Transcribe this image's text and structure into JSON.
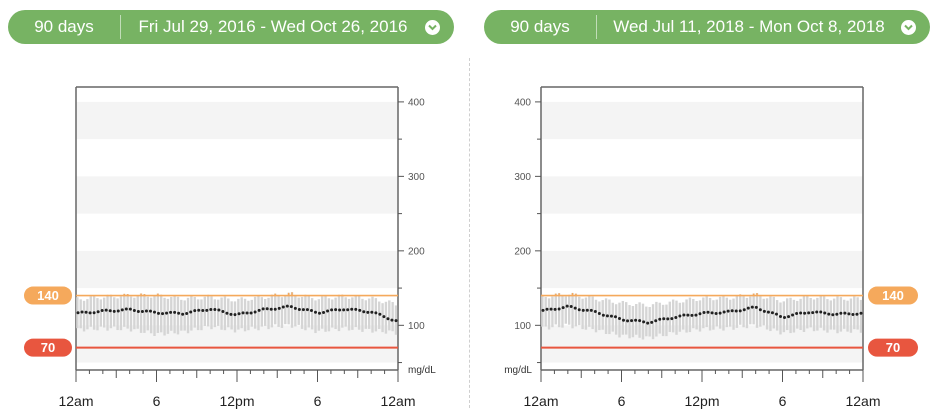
{
  "header_left": {
    "period": "90 days",
    "range": "Fri Jul 29, 2016 - Wed Oct 26, 2016"
  },
  "header_right": {
    "period": "90 days",
    "range": "Wed Jul 11, 2018 - Mon Oct 8, 2018"
  },
  "chevron_icon": "chevron-down-icon",
  "colors": {
    "header": "#77b363",
    "high_target": "#f5a95c",
    "low_target": "#e8563f",
    "median": "#222222",
    "range_band": "#d5d5d5",
    "stripe": "#f4f4f4"
  },
  "chart_data": [
    {
      "type": "line",
      "title": "",
      "xlabel": "",
      "ylabel": "mg/dL",
      "unit_label": "mg/dL",
      "ylim": [
        40,
        420
      ],
      "y_ticks": [
        100,
        200,
        300,
        400
      ],
      "x_tick_labels": [
        "12am",
        "6",
        "12pm",
        "6",
        "12am"
      ],
      "x_range_hours": [
        0,
        24
      ],
      "target_high": 140,
      "target_low": 70,
      "target_high_label": "140",
      "target_low_label": "70",
      "y_axis_side": "right",
      "badge_side": "left",
      "series": [
        {
          "x": [
            0,
            2,
            4,
            6,
            8,
            10,
            12,
            14,
            16,
            18,
            20,
            22,
            24
          ],
          "y": [
            116,
            119,
            121,
            117,
            116,
            122,
            114,
            121,
            125,
            117,
            122,
            118,
            105
          ],
          "y_lo": [
            94,
            96,
            95,
            88,
            91,
            98,
            93,
            97,
            100,
            92,
            96,
            93,
            90
          ],
          "y_hi": [
            135,
            138,
            140,
            140,
            136,
            138,
            134,
            138,
            142,
            136,
            139,
            136,
            128
          ]
        }
      ]
    },
    {
      "type": "line",
      "title": "",
      "xlabel": "",
      "ylabel": "mg/dL",
      "unit_label": "mg/dL",
      "ylim": [
        40,
        420
      ],
      "y_ticks": [
        100,
        200,
        300,
        400
      ],
      "x_tick_labels": [
        "12am",
        "6",
        "12pm",
        "6",
        "12am"
      ],
      "x_range_hours": [
        0,
        24
      ],
      "target_high": 140,
      "target_low": 70,
      "target_high_label": "140",
      "target_low_label": "70",
      "y_axis_side": "left",
      "badge_side": "right",
      "series": [
        {
          "x": [
            0,
            2,
            4,
            6,
            8,
            10,
            12,
            14,
            16,
            18,
            20,
            22,
            24
          ],
          "y": [
            119,
            125,
            118,
            108,
            104,
            111,
            116,
            118,
            124,
            111,
            118,
            115,
            116
          ],
          "y_lo": [
            96,
            100,
            94,
            86,
            83,
            90,
            95,
            96,
            100,
            90,
            95,
            92,
            93
          ],
          "y_hi": [
            138,
            142,
            136,
            130,
            127,
            132,
            136,
            137,
            141,
            133,
            138,
            136,
            136
          ]
        }
      ]
    }
  ]
}
